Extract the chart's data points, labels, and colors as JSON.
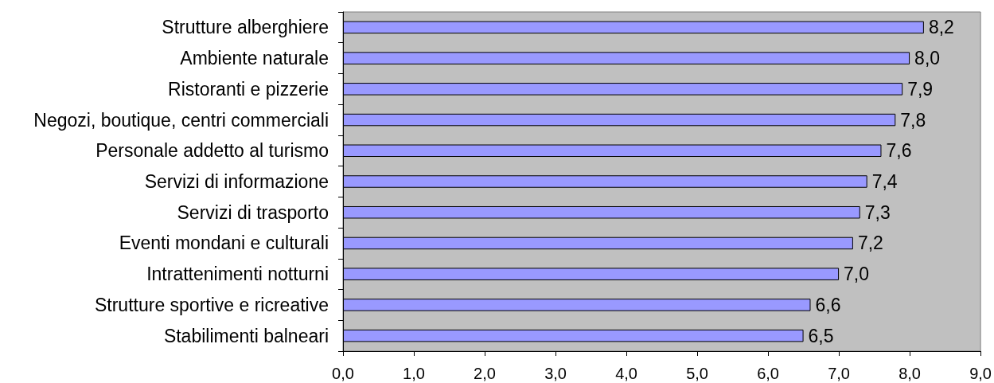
{
  "chart_data": {
    "type": "bar",
    "orientation": "horizontal",
    "color": "#9999ff",
    "grid": false,
    "categories": [
      "Strutture alberghiere",
      "Ambiente naturale",
      "Ristoranti e pizzerie",
      "Negozi, boutique, centri commerciali",
      "Personale addetto al turismo",
      "Servizi di informazione",
      "Servizi di trasporto",
      "Eventi mondani e culturali",
      "Intrattenimenti notturni",
      "Strutture sportive e ricreative",
      "Stabilimenti balneari"
    ],
    "values": [
      8.2,
      8.0,
      7.9,
      7.8,
      7.6,
      7.4,
      7.3,
      7.2,
      7.0,
      6.6,
      6.5
    ],
    "value_labels": [
      "8,2",
      "8,0",
      "7,9",
      "7,8",
      "7,6",
      "7,4",
      "7,3",
      "7,2",
      "7,0",
      "6,6",
      "6,5"
    ],
    "xlim": [
      0,
      9
    ],
    "xticks": [
      {
        "value": 0,
        "label": "0,0"
      },
      {
        "value": 1,
        "label": "1,0"
      },
      {
        "value": 2,
        "label": "2,0"
      },
      {
        "value": 3,
        "label": "3,0"
      },
      {
        "value": 4,
        "label": "4,0"
      },
      {
        "value": 5,
        "label": "5,0"
      },
      {
        "value": 6,
        "label": "6,0"
      },
      {
        "value": 7,
        "label": "7,0"
      },
      {
        "value": 8,
        "label": "8,0"
      },
      {
        "value": 9,
        "label": "9,0"
      }
    ]
  }
}
